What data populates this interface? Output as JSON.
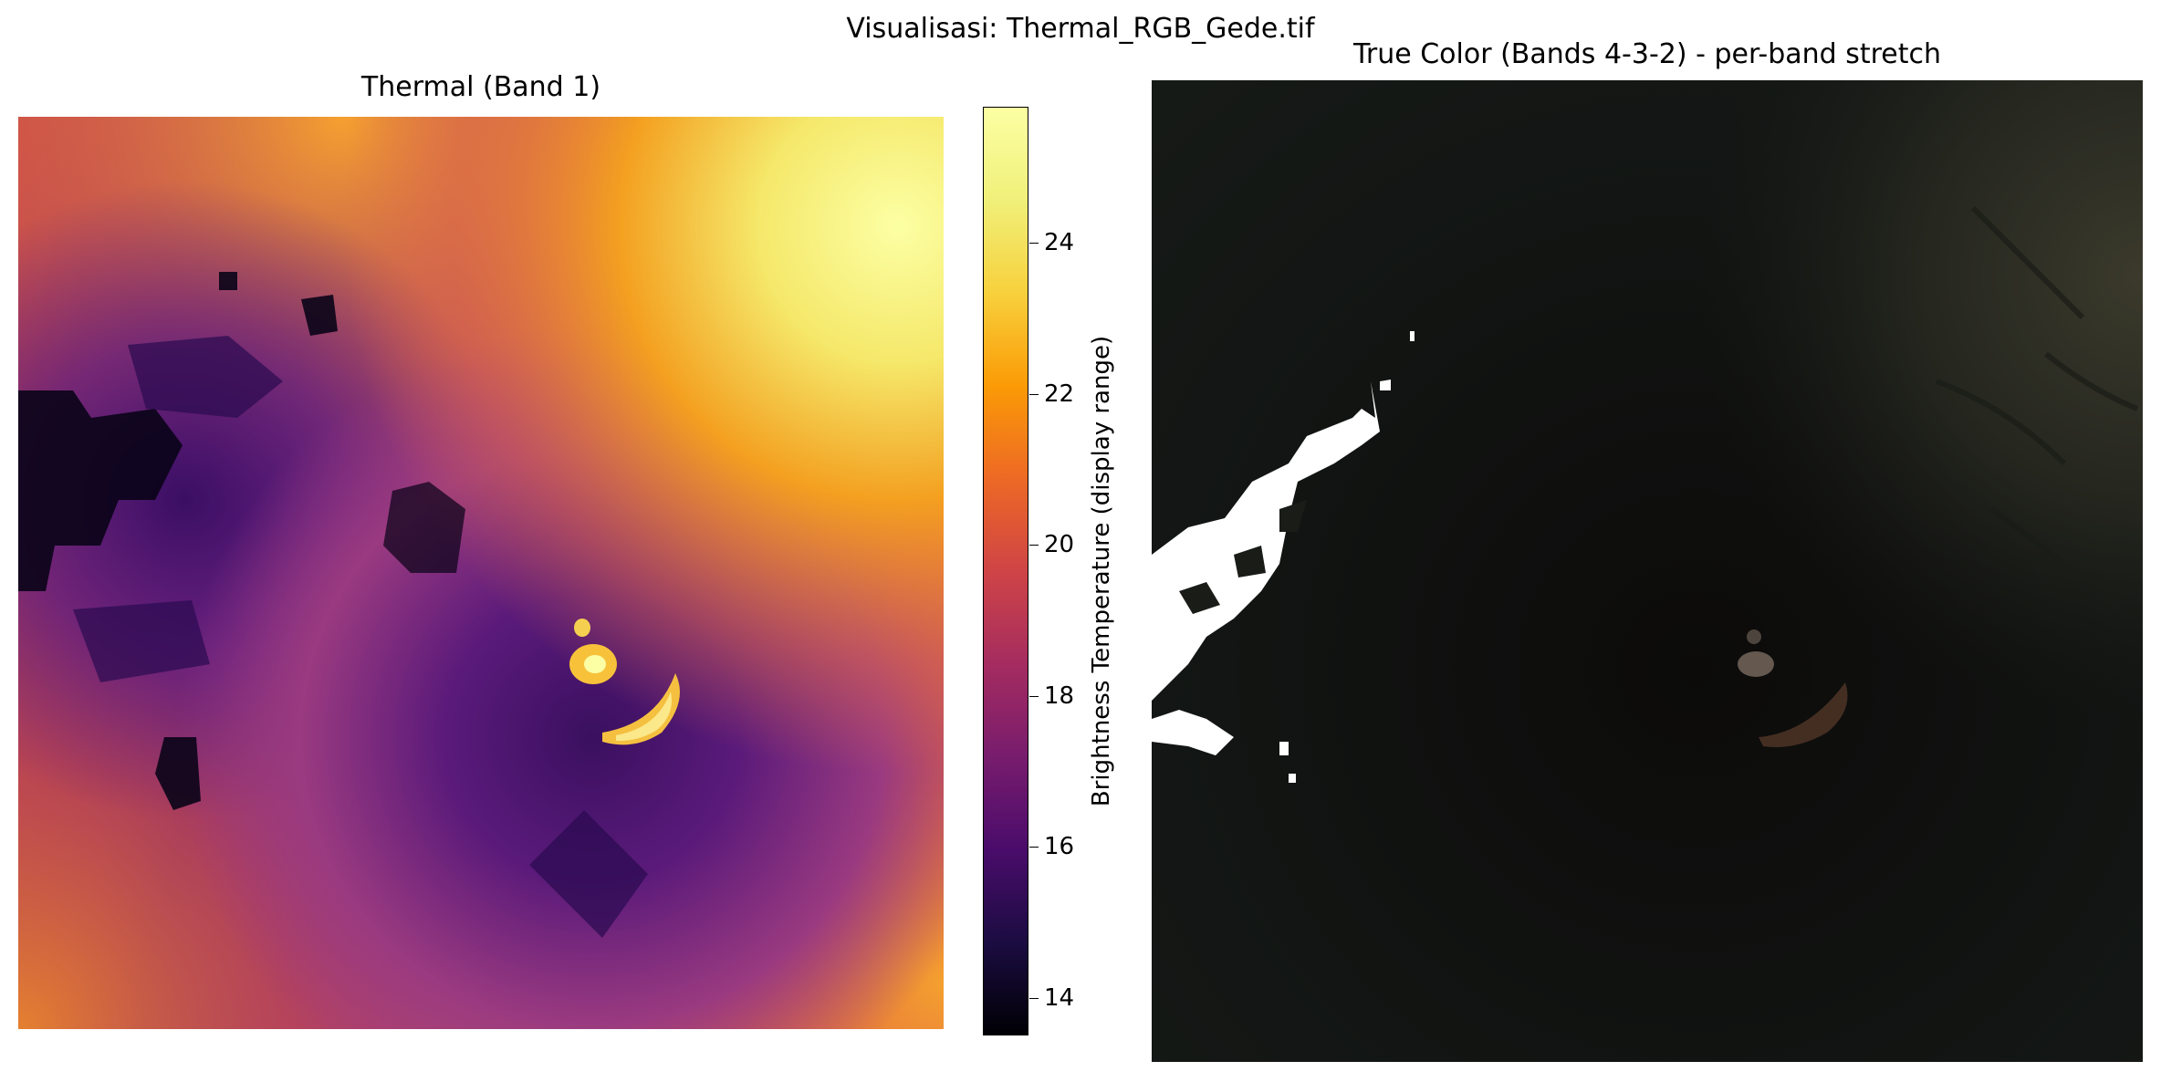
{
  "figure": {
    "suptitle": "Visualisasi: Thermal_RGB_Gede.tif"
  },
  "thermal_panel": {
    "title": "Thermal (Band 1)",
    "colormap": "inferno",
    "colorbar": {
      "label": "Brightness Temperature (display range)",
      "range": [
        13.5,
        25.8
      ],
      "ticks": [
        "14",
        "16",
        "18",
        "20",
        "22",
        "24"
      ]
    }
  },
  "rgb_panel": {
    "title": "True Color (Bands 4-3-2) - per-band stretch"
  },
  "colors": {
    "background": "#ffffff",
    "inferno_low": "#000004",
    "inferno_mid": "#bc3754",
    "inferno_high": "#fcffa4"
  }
}
